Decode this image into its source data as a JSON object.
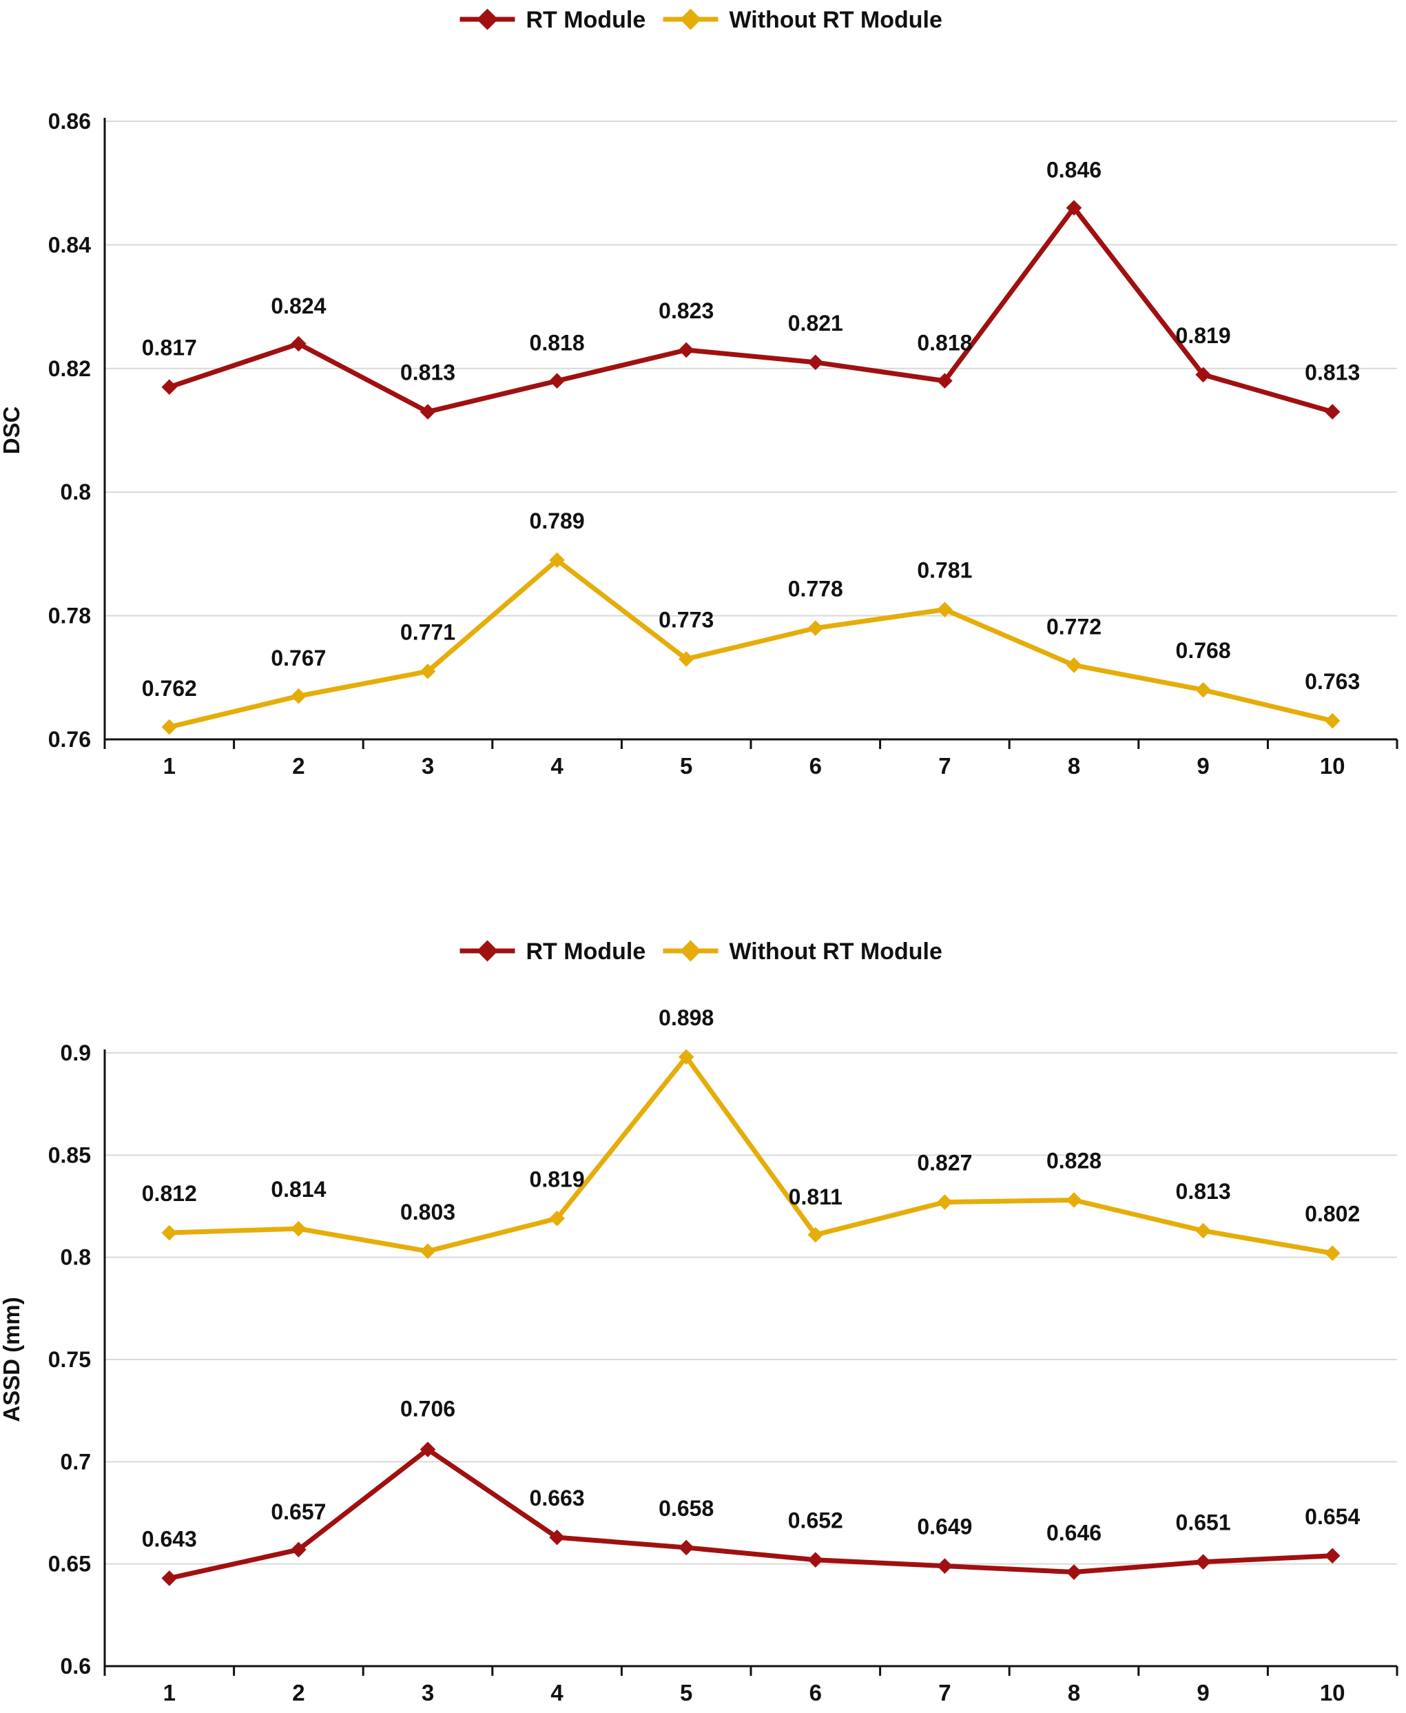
{
  "chart_data": [
    {
      "type": "line",
      "title": "",
      "xlabel": "",
      "ylabel": "DSC",
      "ylim": [
        0.76,
        0.86
      ],
      "yticks": [
        0.76,
        0.78,
        0.8,
        0.82,
        0.84,
        0.86
      ],
      "ytick_labels": [
        "0.76",
        "0.78",
        "0.8",
        "0.82",
        "0.84",
        "0.86"
      ],
      "categories": [
        "1",
        "2",
        "3",
        "4",
        "5",
        "6",
        "7",
        "8",
        "9",
        "10"
      ],
      "legend": {
        "position": "top-center",
        "entries": [
          "RT Module",
          "Without RT Module"
        ]
      },
      "grid": true,
      "series": [
        {
          "name": "RT Module",
          "color": "#a01010",
          "values": [
            0.817,
            0.824,
            0.813,
            0.818,
            0.823,
            0.821,
            0.818,
            0.846,
            0.819,
            0.813
          ],
          "labels": [
            "0.817",
            "0.824",
            "0.813",
            "0.818",
            "0.823",
            "0.821",
            "0.818",
            "0.846",
            "0.819",
            "0.813"
          ]
        },
        {
          "name": "Without RT Module",
          "color": "#e6ad0a",
          "values": [
            0.762,
            0.767,
            0.771,
            0.789,
            0.773,
            0.778,
            0.781,
            0.772,
            0.768,
            0.763
          ],
          "labels": [
            "0.762",
            "0.767",
            "0.771",
            "0.789",
            "0.773",
            "0.778",
            "0.781",
            "0.772",
            "0.768",
            "0.763"
          ]
        }
      ]
    },
    {
      "type": "line",
      "title": "",
      "xlabel": "",
      "ylabel": "ASSD  (mm)",
      "ylim": [
        0.6,
        0.9
      ],
      "yticks": [
        0.6,
        0.65,
        0.7,
        0.75,
        0.8,
        0.85,
        0.9
      ],
      "ytick_labels": [
        "0.6",
        "0.65",
        "0.7",
        "0.75",
        "0.8",
        "0.85",
        "0.9"
      ],
      "categories": [
        "1",
        "2",
        "3",
        "4",
        "5",
        "6",
        "7",
        "8",
        "9",
        "10"
      ],
      "legend": {
        "position": "top-center",
        "entries": [
          "RT Module",
          "Without RT Module"
        ]
      },
      "grid": true,
      "series": [
        {
          "name": "RT Module",
          "color": "#a01010",
          "values": [
            0.643,
            0.657,
            0.706,
            0.663,
            0.658,
            0.652,
            0.649,
            0.646,
            0.651,
            0.654
          ],
          "labels": [
            "0.643",
            "0.657",
            "0.706",
            "0.663",
            "0.658",
            "0.652",
            "0.649",
            "0.646",
            "0.651",
            "0.654"
          ]
        },
        {
          "name": "Without RT Module",
          "color": "#e6ad0a",
          "values": [
            0.812,
            0.814,
            0.803,
            0.819,
            0.898,
            0.811,
            0.827,
            0.828,
            0.813,
            0.802
          ],
          "labels": [
            "0.812",
            "0.814",
            "0.803",
            "0.819",
            "0.898",
            "0.811",
            "0.827",
            "0.828",
            "0.813",
            "0.802"
          ]
        }
      ]
    }
  ]
}
